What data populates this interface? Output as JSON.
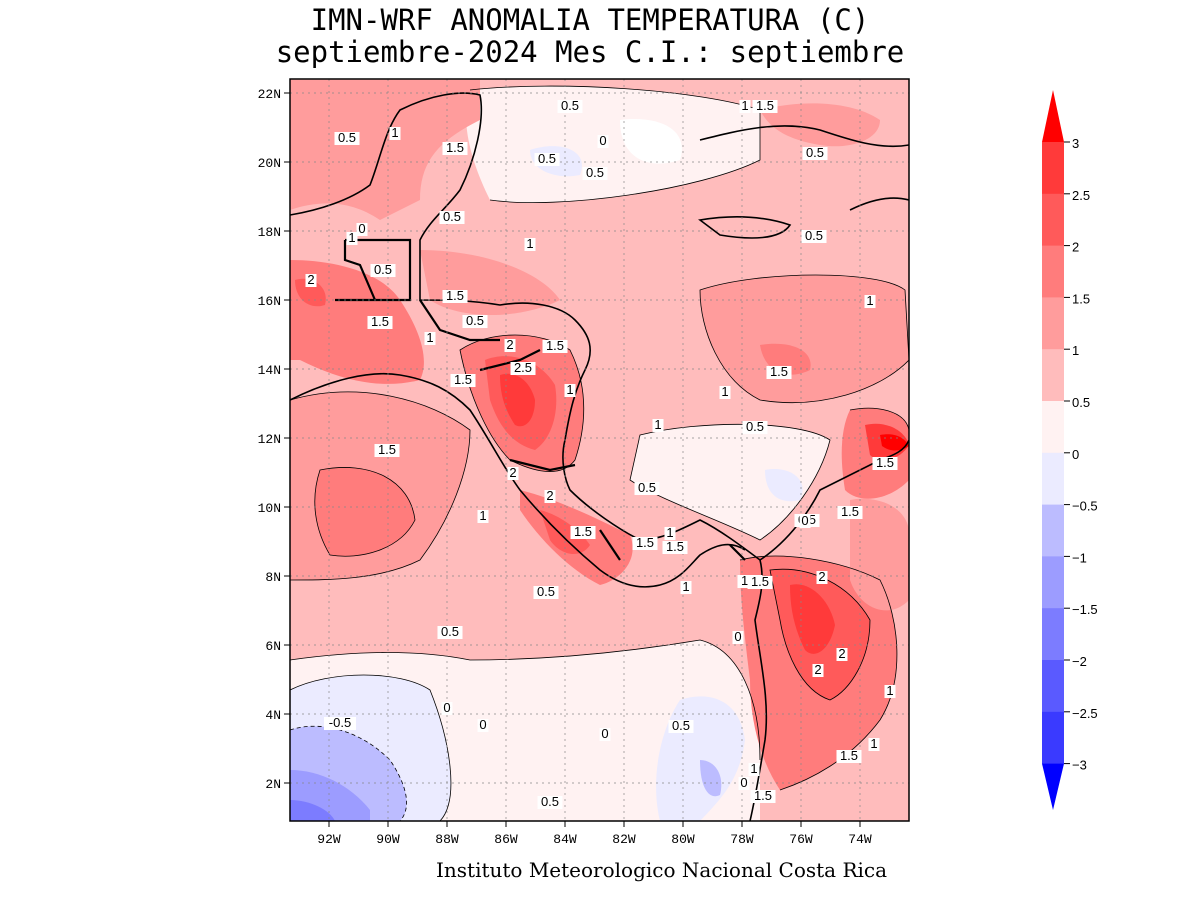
{
  "title_line1": "IMN-WRF  ANOMALIA TEMPERATURA (C)",
  "title_line2": "septiembre-2024 Mes C.I.: septiembre",
  "footer": "Instituto Meteorologico Nacional Costa Rica",
  "map": {
    "lon_range": [
      -93.2,
      -72.2
    ],
    "lat_range": [
      1,
      22.5
    ],
    "x_ticks": [
      "92W",
      "90W",
      "88W",
      "86W",
      "84W",
      "82W",
      "80W",
      "78W",
      "76W",
      "74W"
    ],
    "y_ticks": [
      "22N",
      "20N",
      "18N",
      "16N",
      "14N",
      "12N",
      "10N",
      "8N",
      "6N",
      "4N",
      "2N"
    ],
    "contour_labels": [
      "0.5",
      "1",
      "1.5",
      "0.5",
      "0",
      "0.5",
      "0.5",
      "1",
      "1.5",
      "0.5",
      "1",
      "0",
      "0.5",
      "0.5",
      "1",
      "0.5",
      "2",
      "1.5",
      "0.5",
      "1.5",
      "1",
      "1.5",
      "0.5",
      "2",
      "2.5",
      "1.5",
      "1",
      "1",
      "1.5",
      "1",
      "1",
      "0.5",
      "1.5",
      "1.5",
      "2",
      "1",
      "2",
      "0.5",
      "1.5",
      "1.5",
      "0",
      "1.5",
      "1",
      "1.5",
      "1.5",
      "2",
      "1",
      "1.5",
      "0.5",
      "2",
      "2",
      "0.5",
      "0",
      "1",
      "-0.5",
      "0",
      "0",
      "0",
      "0.5",
      "0.5",
      "1",
      "1",
      "1.5",
      "1.5",
      "0"
    ]
  },
  "colorbar": {
    "levels": [
      "3",
      "2.5",
      "2",
      "1.5",
      "1",
      "0.5",
      "0",
      "−0.5",
      "−1",
      "−1.5",
      "−2",
      "−2.5",
      "−3"
    ],
    "colors": [
      "#ff0000",
      "#ff3a3a",
      "#ff5a5a",
      "#ff7c7c",
      "#ff9c9c",
      "#ffbcbc",
      "#fff2f2",
      "#ebebff",
      "#bcbcff",
      "#9c9cff",
      "#7c7cff",
      "#5a5aff",
      "#3a3aff",
      "#0000ff"
    ]
  }
}
